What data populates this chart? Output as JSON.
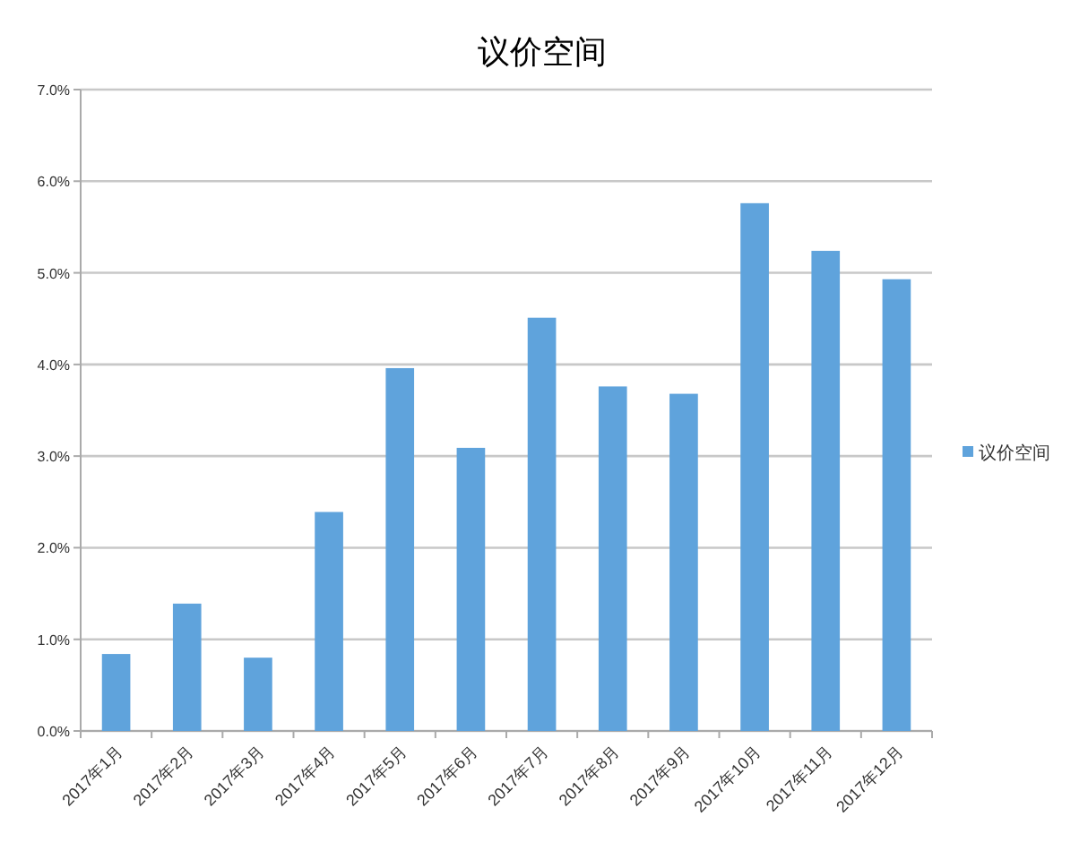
{
  "chart_data": {
    "type": "bar",
    "title": "议价空间",
    "categories": [
      "2017年1月",
      "2017年2月",
      "2017年3月",
      "2017年4月",
      "2017年5月",
      "2017年6月",
      "2017年7月",
      "2017年8月",
      "2017年9月",
      "2017年10月",
      "2017年11月",
      "2017年12月"
    ],
    "series": [
      {
        "name": "议价空间",
        "color": "#5fa3dc",
        "values": [
          0.84,
          1.39,
          0.8,
          2.39,
          3.96,
          3.09,
          4.51,
          3.76,
          3.68,
          5.76,
          5.24,
          4.93
        ]
      }
    ],
    "ylim": [
      0,
      7
    ],
    "yticks": [
      {
        "value": 0,
        "label": "0.0%"
      },
      {
        "value": 1,
        "label": "1.0%"
      },
      {
        "value": 2,
        "label": "2.0%"
      },
      {
        "value": 3,
        "label": "3.0%"
      },
      {
        "value": 4,
        "label": "4.0%"
      },
      {
        "value": 5,
        "label": "5.0%"
      },
      {
        "value": 6,
        "label": "6.0%"
      },
      {
        "value": 7,
        "label": "7.0%"
      }
    ],
    "grid": "y",
    "legend": "right"
  }
}
